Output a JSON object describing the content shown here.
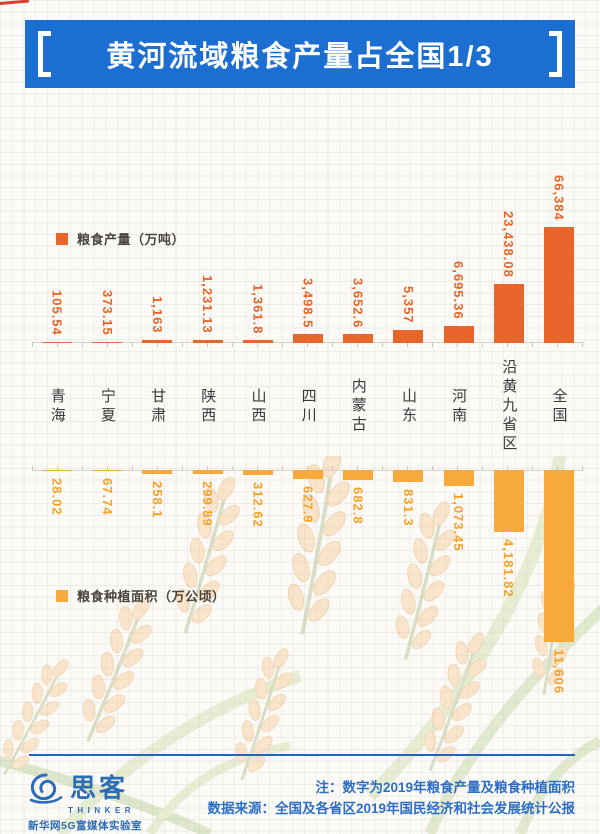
{
  "banner": {
    "title": "黄河流域粮食产量占全国1/3"
  },
  "chart_data": {
    "type": "bar",
    "layout": "diverging-mirrored: production bars grow up from upper baseline, planting-area bars grow down from lower baseline, shared category labels between",
    "title": "黄河流域粮食产量占全国1/3",
    "categories": [
      "青海",
      "宁夏",
      "甘肃",
      "陕西",
      "山西",
      "四川",
      "内蒙古",
      "山东",
      "河南",
      "沿黄九省区",
      "全国"
    ],
    "series": [
      {
        "name": "粮食产量（万吨）",
        "direction": "up",
        "color": "#e8662c",
        "values": [
          105.54,
          373.15,
          1163,
          1231.13,
          1361.8,
          3498.5,
          3652.6,
          5357,
          6695.36,
          23438.08,
          66384
        ],
        "labels": [
          "105.54",
          "373.15",
          "1,163",
          "1,231.13",
          "1,361.8",
          "3,498.5",
          "3,652.6",
          "5,357",
          "6,695.36",
          "23,438.08",
          "66,384"
        ]
      },
      {
        "name": "粮食种植面积（万公顷）",
        "direction": "down",
        "color": "#f7a93c",
        "values": [
          28.02,
          67.74,
          258.1,
          299.89,
          312.62,
          627.9,
          682.8,
          831.3,
          1073.45,
          4181.82,
          11606
        ],
        "labels": [
          "28.02",
          "67.74",
          "258.1",
          "299.89",
          "312.62",
          "627.9",
          "682.8",
          "831.3",
          "1,073.45",
          "4,181.82",
          "11,606"
        ]
      }
    ],
    "grid": false,
    "value_labels": "rotated 90°, at bar ends"
  },
  "legends": {
    "production": {
      "label": "粮食产量（万吨）"
    },
    "area": {
      "label": "粮食种植面积（万公顷）"
    }
  },
  "footer": {
    "note_line1": "注：数字为2019年粮食产量及粮食种植面积",
    "note_line2": "数据来源：全国及各省区2019年国民经济和社会发展统计公报"
  },
  "logo": {
    "wordmark": "思客",
    "latin": "THINKER",
    "org": "新华网5G富媒体实验室"
  },
  "colors": {
    "banner_blue": "#1c6fd0",
    "production_orange": "#e8662c",
    "area_yellow": "#f7a93c",
    "production_label": "#e8652a",
    "area_label": "#f5a227",
    "category_text": "#3a3a3a",
    "footer_blue": "#2e6fc4",
    "logo_blue": "#2c6bb5"
  }
}
